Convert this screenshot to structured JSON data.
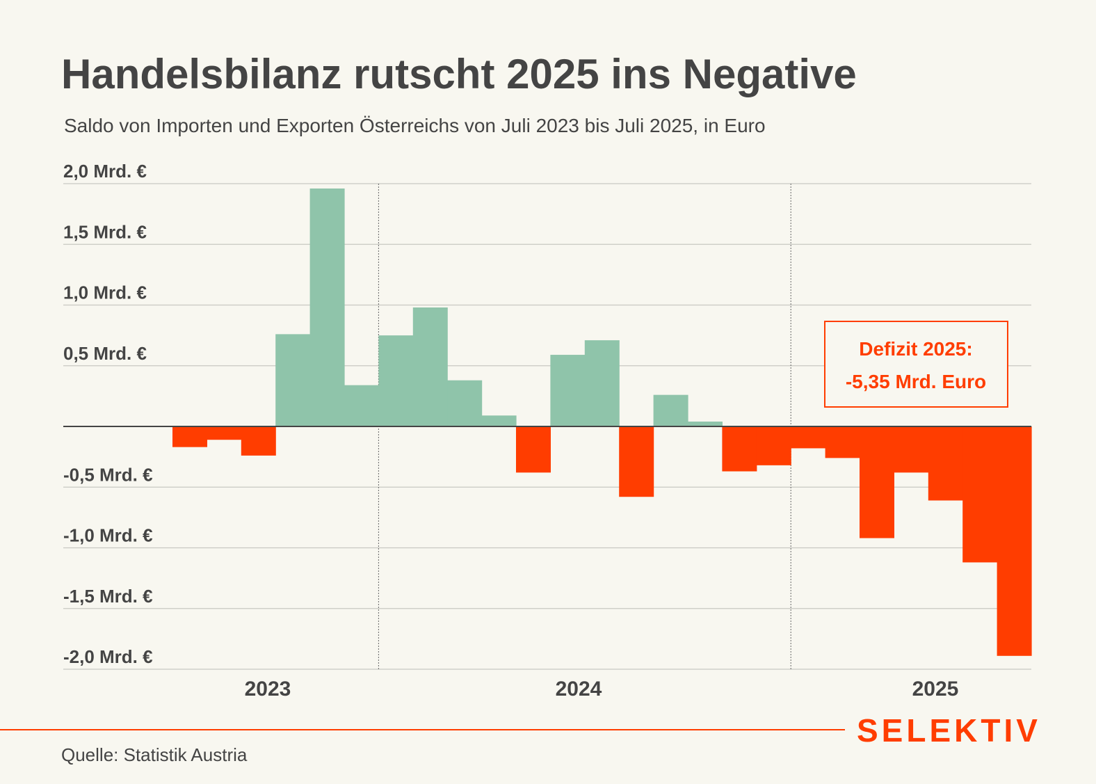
{
  "chart_data": {
    "type": "bar",
    "title": "Handelsbilanz rutscht 2025 ins Negative",
    "subtitle": "Saldo von Importen und Exporten Österreichs von Juli 2023 bis Juli 2025, in Euro",
    "xlabel": "",
    "ylabel": "",
    "unit": "Mrd. €",
    "ylim": [
      -2.0,
      2.0
    ],
    "yticks": [
      2.0,
      1.5,
      1.0,
      0.5,
      -0.5,
      -1.0,
      -1.5,
      -2.0
    ],
    "ytick_labels": [
      "2,0 Mrd. €",
      "1,5 Mrd. €",
      "1,0 Mrd. €",
      "0,5 Mrd. €",
      "-0,5 Mrd. €",
      "-1,0 Mrd. €",
      "-1,5 Mrd. €",
      "-2,0 Mrd. €"
    ],
    "year_labels": [
      "2023",
      "2024",
      "2025"
    ],
    "grid": true,
    "categories": [
      "2023-07",
      "2023-08",
      "2023-09",
      "2023-10",
      "2023-11",
      "2023-12",
      "2024-01",
      "2024-02",
      "2024-03",
      "2024-04",
      "2024-05",
      "2024-06",
      "2024-07",
      "2024-08",
      "2024-09",
      "2024-10",
      "2024-11",
      "2024-12",
      "2025-01",
      "2025-02",
      "2025-03",
      "2025-04",
      "2025-05",
      "2025-06",
      "2025-07"
    ],
    "values": [
      -0.17,
      -0.11,
      -0.24,
      0.76,
      1.96,
      0.34,
      0.75,
      0.98,
      0.38,
      0.09,
      -0.38,
      0.59,
      0.71,
      -0.58,
      0.26,
      0.04,
      -0.37,
      -0.32,
      -0.18,
      -0.26,
      -0.92,
      -0.38,
      -0.61,
      -1.12,
      -1.89
    ],
    "colors": {
      "positive": "#8fc4aa",
      "negative": "#ff3d00"
    },
    "annotation": {
      "line1": "Defizit 2025:",
      "line2": "-5,35 Mrd. Euro"
    }
  },
  "source": "Quelle: Statistik Austria",
  "brand": "SELEKTIV",
  "colors": {
    "background": "#f8f7f0",
    "text": "#444444",
    "accent": "#ff3d00"
  }
}
